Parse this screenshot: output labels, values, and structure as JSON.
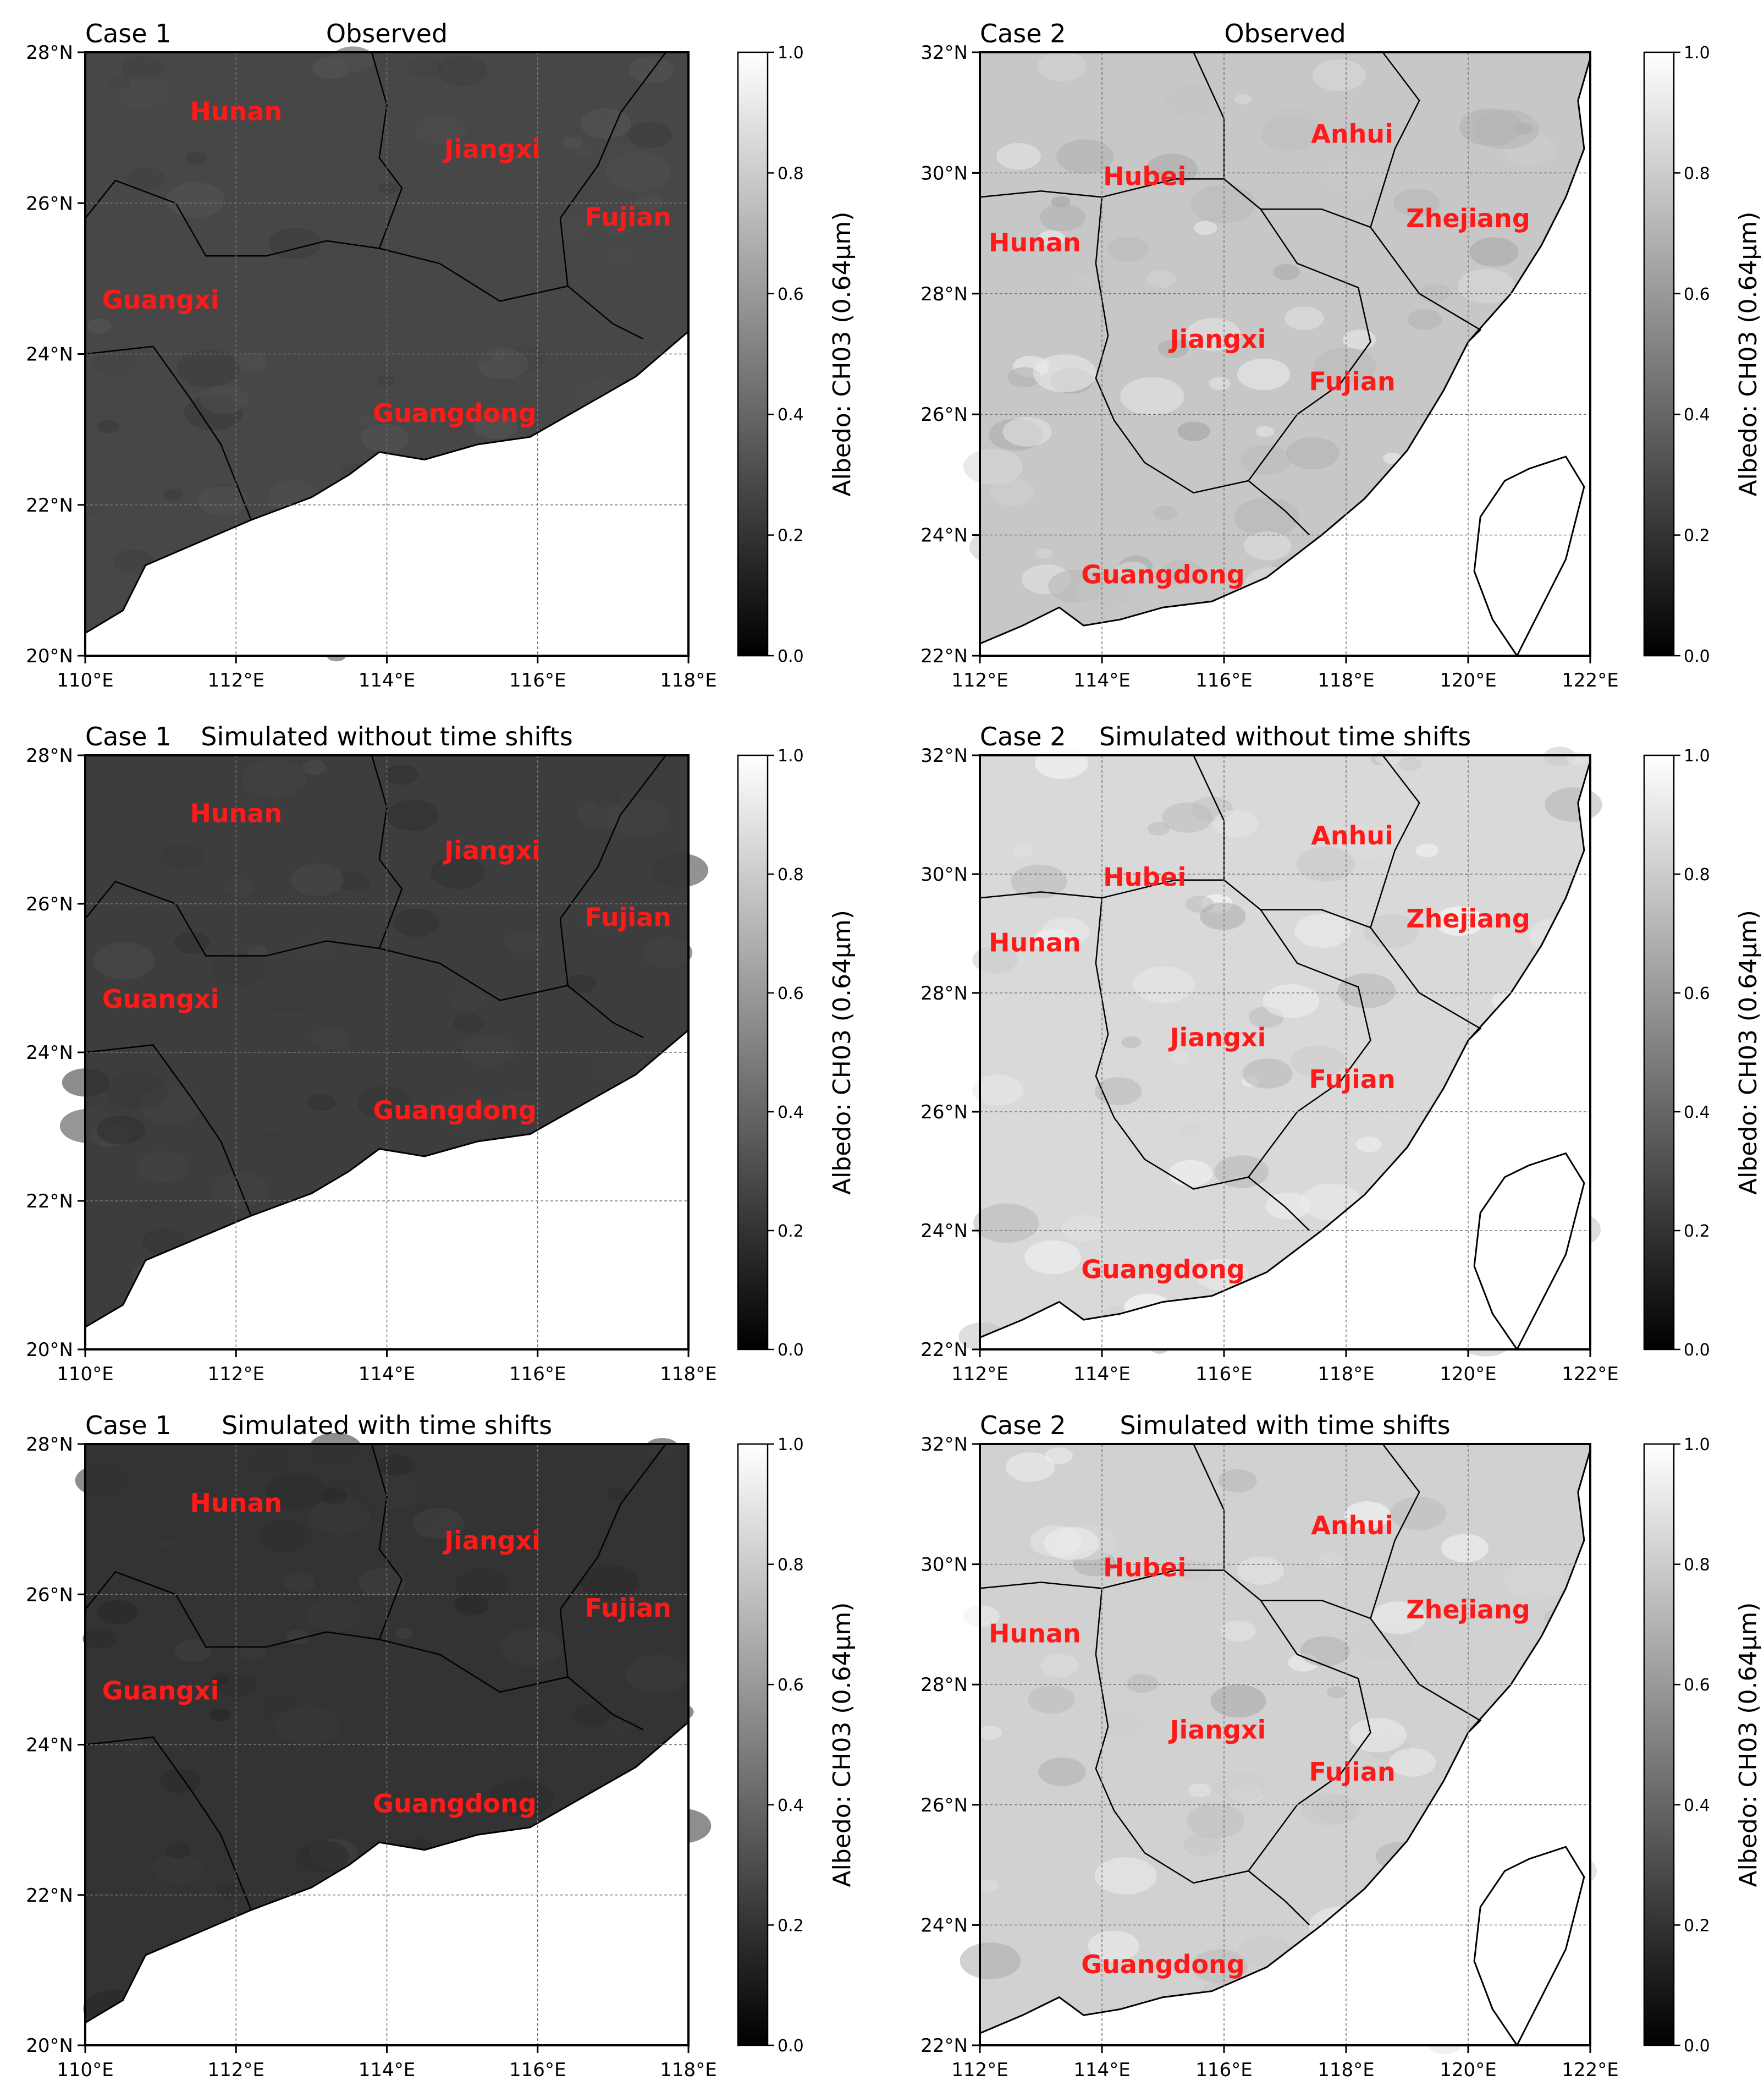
{
  "colors": {
    "label": "#ff1a1a",
    "sea": "#ffffff",
    "grid": "#777777",
    "border": "#000000"
  },
  "colorbar": {
    "label": "Albedo: CH03 (0.64μm)",
    "ticks": [
      0.0,
      0.2,
      0.4,
      0.6,
      0.8,
      1.0
    ],
    "tick_labels": [
      "0.0",
      "0.2",
      "0.4",
      "0.6",
      "0.8",
      "1.0"
    ]
  },
  "chart_data": [
    {
      "type": "heatmap",
      "case": "Case 1",
      "title": "Observed",
      "lon_range": [
        110,
        118
      ],
      "lat_range": [
        20,
        28
      ],
      "x_ticks": [
        "110°E",
        "112°E",
        "114°E",
        "116°E",
        "118°E"
      ],
      "y_ticks": [
        "20°N",
        "22°N",
        "24°N",
        "26°N",
        "28°N"
      ],
      "land_albedo": 0.28,
      "regions": [
        {
          "name": "Hunan",
          "lon": 112.0,
          "lat": 27.1
        },
        {
          "name": "Jiangxi",
          "lon": 115.4,
          "lat": 26.6
        },
        {
          "name": "Fujian",
          "lon": 117.2,
          "lat": 25.7
        },
        {
          "name": "Guangxi",
          "lon": 111.0,
          "lat": 24.6
        },
        {
          "name": "Guangdong",
          "lon": 114.9,
          "lat": 23.1
        }
      ]
    },
    {
      "type": "heatmap",
      "case": "Case 2",
      "title": "Observed",
      "lon_range": [
        112,
        122
      ],
      "lat_range": [
        22,
        32
      ],
      "x_ticks": [
        "112°E",
        "114°E",
        "116°E",
        "118°E",
        "120°E",
        "122°E"
      ],
      "y_ticks": [
        "22°N",
        "24°N",
        "26°N",
        "28°N",
        "30°N",
        "32°N"
      ],
      "land_albedo": 0.78,
      "regions": [
        {
          "name": "Anhui",
          "lon": 118.1,
          "lat": 30.5
        },
        {
          "name": "Hubei",
          "lon": 114.7,
          "lat": 29.8
        },
        {
          "name": "Zhejiang",
          "lon": 120.0,
          "lat": 29.1
        },
        {
          "name": "Hunan",
          "lon": 112.9,
          "lat": 28.7
        },
        {
          "name": "Jiangxi",
          "lon": 115.9,
          "lat": 27.1
        },
        {
          "name": "Fujian",
          "lon": 118.1,
          "lat": 26.4
        },
        {
          "name": "Guangdong",
          "lon": 115.0,
          "lat": 23.2
        }
      ]
    },
    {
      "type": "heatmap",
      "case": "Case 1",
      "title": "Simulated without time shifts",
      "lon_range": [
        110,
        118
      ],
      "lat_range": [
        20,
        28
      ],
      "x_ticks": [
        "110°E",
        "112°E",
        "114°E",
        "116°E",
        "118°E"
      ],
      "y_ticks": [
        "20°N",
        "22°N",
        "24°N",
        "26°N",
        "28°N"
      ],
      "land_albedo": 0.24,
      "regions": [
        {
          "name": "Hunan",
          "lon": 112.0,
          "lat": 27.1
        },
        {
          "name": "Jiangxi",
          "lon": 115.4,
          "lat": 26.6
        },
        {
          "name": "Fujian",
          "lon": 117.2,
          "lat": 25.7
        },
        {
          "name": "Guangxi",
          "lon": 111.0,
          "lat": 24.6
        },
        {
          "name": "Guangdong",
          "lon": 114.9,
          "lat": 23.1
        }
      ]
    },
    {
      "type": "heatmap",
      "case": "Case 2",
      "title": "Simulated without time shifts",
      "lon_range": [
        112,
        122
      ],
      "lat_range": [
        22,
        32
      ],
      "x_ticks": [
        "112°E",
        "114°E",
        "116°E",
        "118°E",
        "120°E",
        "122°E"
      ],
      "y_ticks": [
        "22°N",
        "24°N",
        "26°N",
        "28°N",
        "30°N",
        "32°N"
      ],
      "land_albedo": 0.85,
      "regions": [
        {
          "name": "Anhui",
          "lon": 118.1,
          "lat": 30.5
        },
        {
          "name": "Hubei",
          "lon": 114.7,
          "lat": 29.8
        },
        {
          "name": "Zhejiang",
          "lon": 120.0,
          "lat": 29.1
        },
        {
          "name": "Hunan",
          "lon": 112.9,
          "lat": 28.7
        },
        {
          "name": "Jiangxi",
          "lon": 115.9,
          "lat": 27.1
        },
        {
          "name": "Fujian",
          "lon": 118.1,
          "lat": 26.4
        },
        {
          "name": "Guangdong",
          "lon": 115.0,
          "lat": 23.2
        }
      ]
    },
    {
      "type": "heatmap",
      "case": "Case 1",
      "title": "Simulated with time shifts",
      "lon_range": [
        110,
        118
      ],
      "lat_range": [
        20,
        28
      ],
      "x_ticks": [
        "110°E",
        "112°E",
        "114°E",
        "116°E",
        "118°E"
      ],
      "y_ticks": [
        "20°N",
        "22°N",
        "24°N",
        "26°N",
        "28°N"
      ],
      "land_albedo": 0.2,
      "regions": [
        {
          "name": "Hunan",
          "lon": 112.0,
          "lat": 27.1
        },
        {
          "name": "Jiangxi",
          "lon": 115.4,
          "lat": 26.6
        },
        {
          "name": "Fujian",
          "lon": 117.2,
          "lat": 25.7
        },
        {
          "name": "Guangxi",
          "lon": 111.0,
          "lat": 24.6
        },
        {
          "name": "Guangdong",
          "lon": 114.9,
          "lat": 23.1
        }
      ]
    },
    {
      "type": "heatmap",
      "case": "Case 2",
      "title": "Simulated with time shifts",
      "lon_range": [
        112,
        122
      ],
      "lat_range": [
        22,
        32
      ],
      "x_ticks": [
        "112°E",
        "114°E",
        "116°E",
        "118°E",
        "120°E",
        "122°E"
      ],
      "y_ticks": [
        "22°N",
        "24°N",
        "26°N",
        "28°N",
        "30°N",
        "32°N"
      ],
      "land_albedo": 0.82,
      "regions": [
        {
          "name": "Anhui",
          "lon": 118.1,
          "lat": 30.5
        },
        {
          "name": "Hubei",
          "lon": 114.7,
          "lat": 29.8
        },
        {
          "name": "Zhejiang",
          "lon": 120.0,
          "lat": 29.1
        },
        {
          "name": "Hunan",
          "lon": 112.9,
          "lat": 28.7
        },
        {
          "name": "Jiangxi",
          "lon": 115.9,
          "lat": 27.1
        },
        {
          "name": "Fujian",
          "lon": 118.1,
          "lat": 26.4
        },
        {
          "name": "Guangdong",
          "lon": 115.0,
          "lat": 23.2
        }
      ]
    }
  ]
}
